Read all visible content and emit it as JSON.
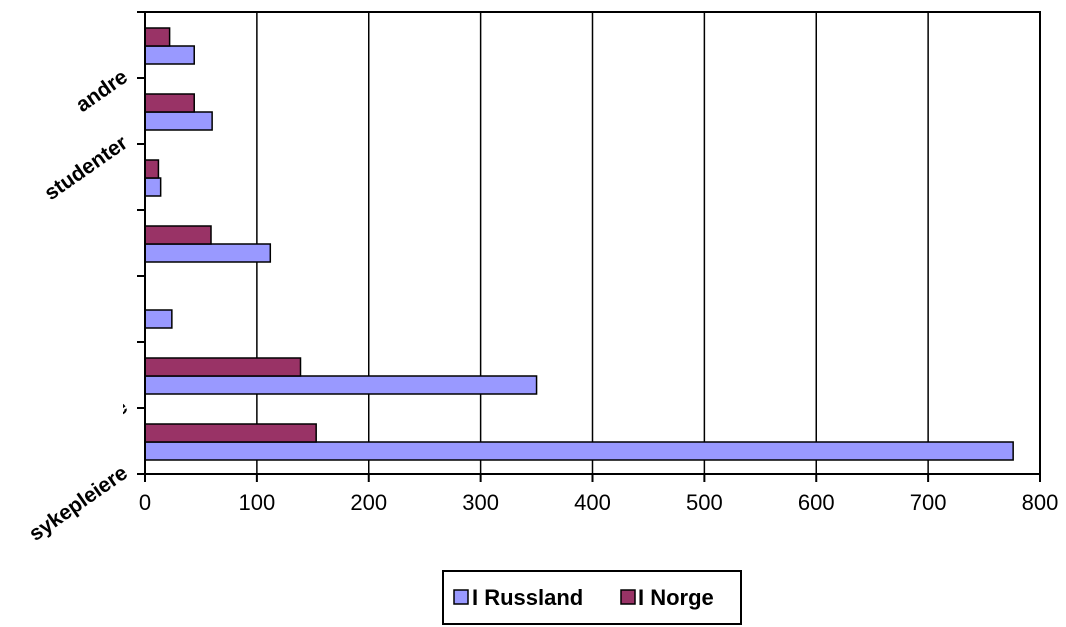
{
  "colors": {
    "series_russland": "#9999ff",
    "series_norge": "#993366",
    "axis": "#000000",
    "background": "#ffffff"
  },
  "chart_data": {
    "type": "bar",
    "orientation": "horizontal",
    "title": "",
    "xlabel": "",
    "ylabel": "",
    "xlim": [
      0,
      800
    ],
    "x_ticks": [
      0,
      100,
      200,
      300,
      400,
      500,
      600,
      700,
      800
    ],
    "grid": "vertical",
    "legend_position": "bottom",
    "categories": [
      "sykepleiere",
      "le",
      "",
      "",
      "",
      "studenter",
      "andre"
    ],
    "category_labels_visible": [
      "sykepleiere",
      "le",
      "",
      "",
      "",
      "studenter",
      "andre"
    ],
    "series": [
      {
        "name": "I Russland",
        "color": "#9999ff",
        "values": [
          776,
          350,
          24,
          112,
          14,
          60,
          44
        ]
      },
      {
        "name": "I Norge",
        "color": "#993366",
        "values": [
          153,
          139,
          0,
          59,
          12,
          44,
          22
        ]
      }
    ]
  }
}
